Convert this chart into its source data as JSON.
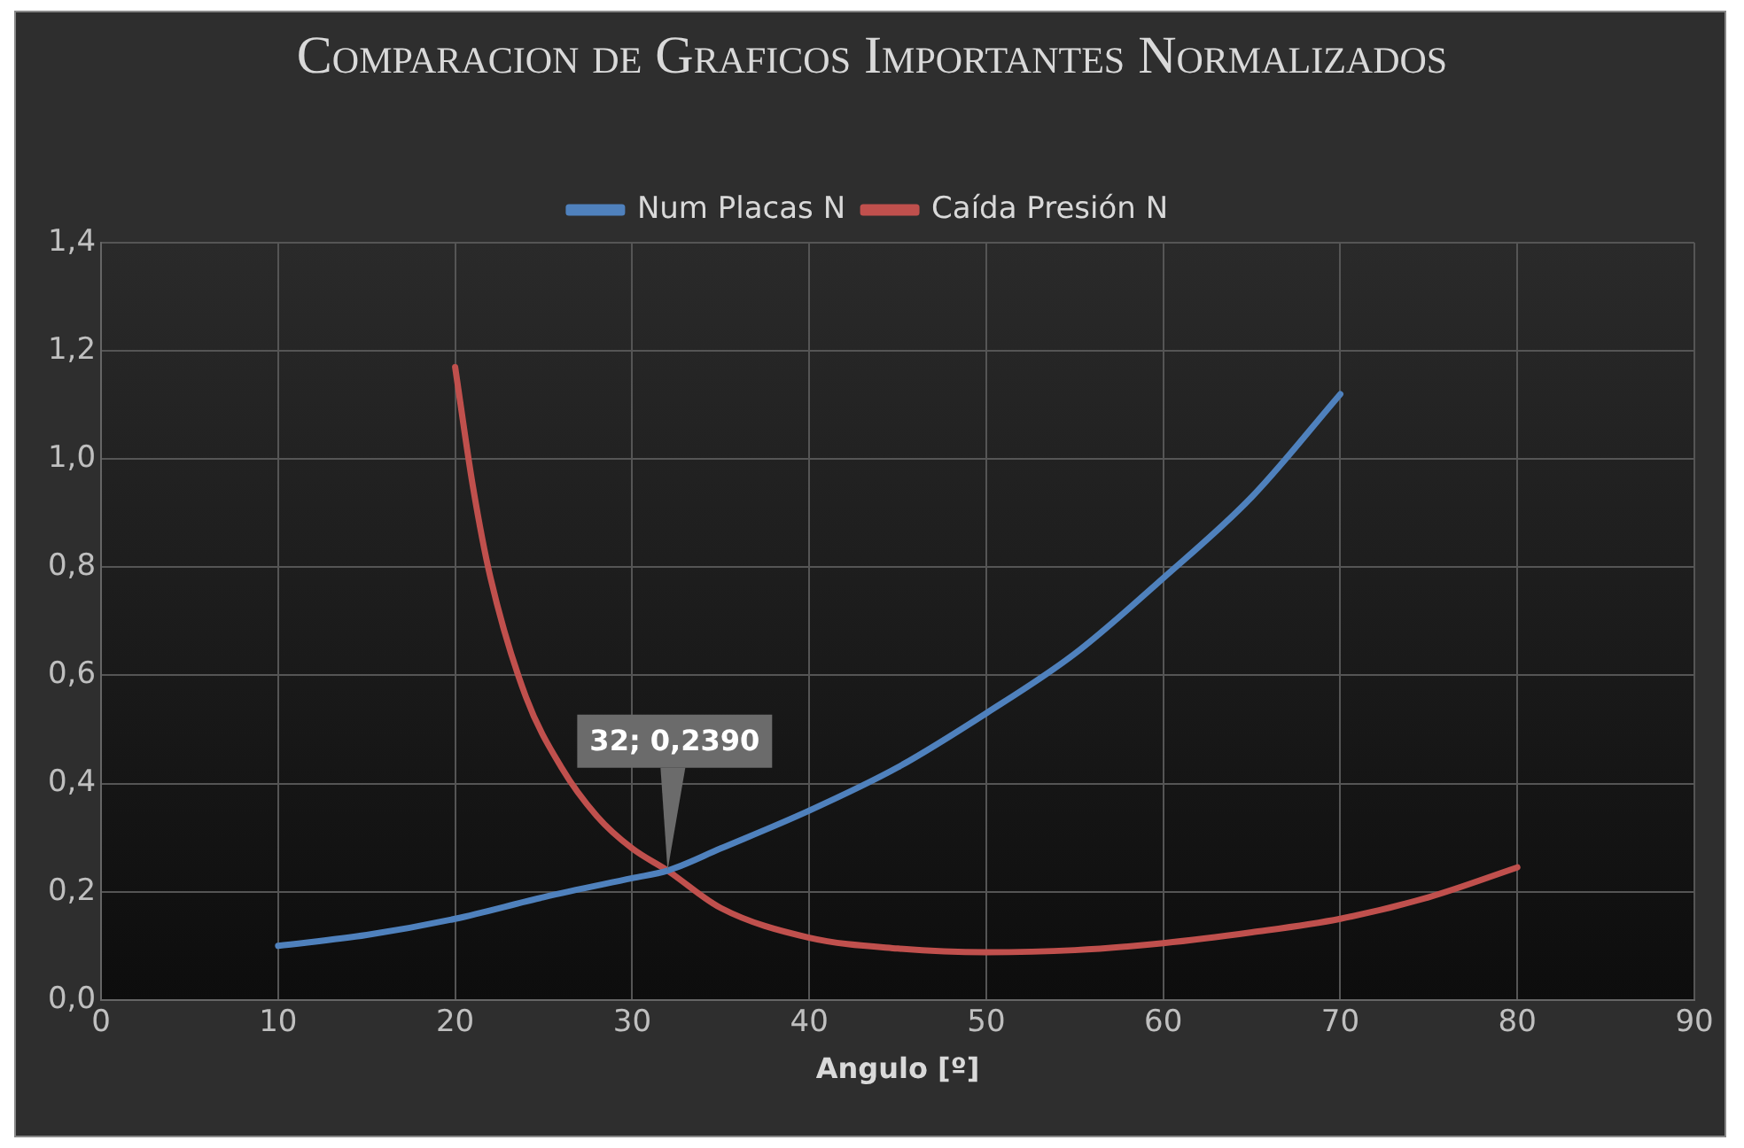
{
  "chart_data": {
    "type": "line",
    "title": "Comparacion de Graficos Importantes Normalizados",
    "xlabel": "Angulo [º]",
    "xlim": [
      0,
      90
    ],
    "xticks": [
      0,
      10,
      20,
      30,
      40,
      50,
      60,
      70,
      80,
      90
    ],
    "ylim": [
      0,
      1.4
    ],
    "yticks": [
      {
        "value": 0,
        "label": "0,0"
      },
      {
        "value": 0.2,
        "label": "0,2"
      },
      {
        "value": 0.4,
        "label": "0,4"
      },
      {
        "value": 0.6,
        "label": "0,6"
      },
      {
        "value": 0.8,
        "label": "0,8"
      },
      {
        "value": 1.0,
        "label": "1,0"
      },
      {
        "value": 1.2,
        "label": "1,2"
      },
      {
        "value": 1.4,
        "label": "1,4"
      }
    ],
    "grid": true,
    "legend": "top",
    "marker": "none",
    "line_style": "solid",
    "annotations": [
      {
        "text": "32; 0,2390",
        "x": 32,
        "y": 0.239
      }
    ],
    "series": [
      {
        "name": "Num Placas N",
        "color": "#4f81bd",
        "x": [
          10,
          15,
          20,
          25,
          30,
          32,
          35,
          40,
          45,
          50,
          55,
          60,
          65,
          70
        ],
        "values": [
          0.1,
          0.12,
          0.15,
          0.19,
          0.225,
          0.239,
          0.28,
          0.35,
          0.43,
          0.53,
          0.64,
          0.78,
          0.93,
          1.12
        ]
      },
      {
        "name": "Caída Presión N",
        "color": "#c0504d",
        "x": [
          20,
          21,
          22,
          24,
          26,
          28,
          30,
          32,
          35,
          40,
          45,
          50,
          55,
          60,
          65,
          70,
          75,
          80
        ],
        "values": [
          1.17,
          0.95,
          0.78,
          0.56,
          0.43,
          0.34,
          0.28,
          0.239,
          0.17,
          0.115,
          0.095,
          0.088,
          0.092,
          0.105,
          0.125,
          0.15,
          0.19,
          0.245
        ]
      }
    ]
  }
}
